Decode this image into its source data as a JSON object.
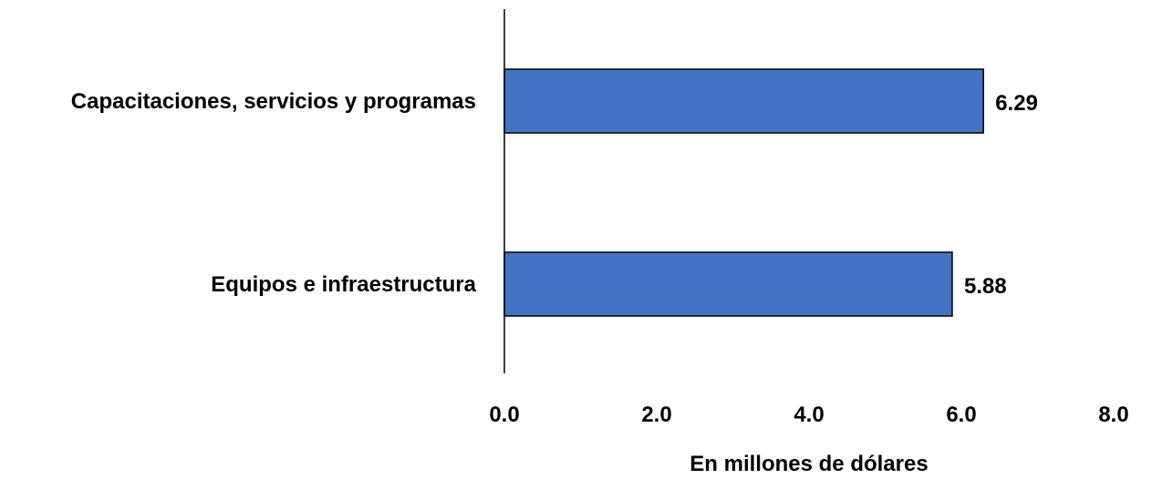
{
  "chart_data": {
    "type": "bar",
    "orientation": "horizontal",
    "categories": [
      "Capacitaciones, servicios y programas",
      "Equipos e infraestructura"
    ],
    "values": [
      6.29,
      5.88
    ],
    "value_labels": [
      "6.29",
      "5.88"
    ],
    "title": "",
    "xlabel": "En millones de dólares",
    "ylabel": "",
    "xlim": [
      0,
      8
    ],
    "xticks": [
      "0.0",
      "2.0",
      "4.0",
      "6.0",
      "8.0"
    ],
    "grid": false,
    "legend": "none",
    "colors": {
      "bar_fill": "#4472C4",
      "bar_stroke": "#000000",
      "axis": "#000000"
    }
  }
}
